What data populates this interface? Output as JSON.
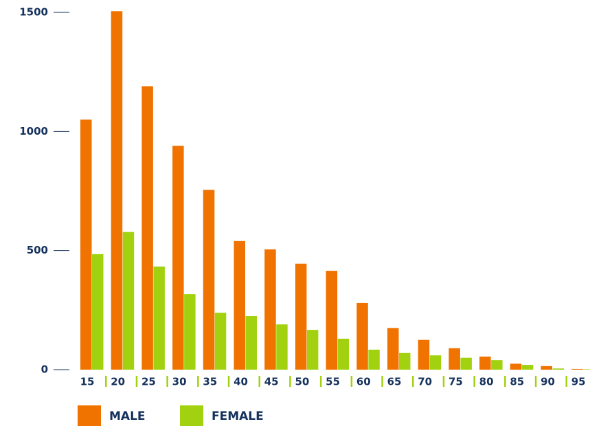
{
  "chart_data": {
    "type": "bar",
    "categories": [
      "15",
      "20",
      "25",
      "30",
      "35",
      "40",
      "45",
      "50",
      "55",
      "60",
      "65",
      "70",
      "75",
      "80",
      "85",
      "90",
      "95"
    ],
    "series": [
      {
        "name": "MALE",
        "color": "#f07300",
        "values": [
          1050,
          1505,
          1190,
          940,
          755,
          540,
          505,
          445,
          415,
          280,
          175,
          125,
          90,
          55,
          25,
          15,
          3
        ]
      },
      {
        "name": "FEMALE",
        "color": "#a2d20f",
        "values": [
          485,
          578,
          433,
          317,
          239,
          225,
          190,
          167,
          130,
          84,
          70,
          60,
          50,
          40,
          20,
          5,
          2
        ]
      }
    ],
    "ylim": [
      0,
      1500
    ],
    "yticks": [
      0,
      500,
      1000,
      1500
    ]
  }
}
